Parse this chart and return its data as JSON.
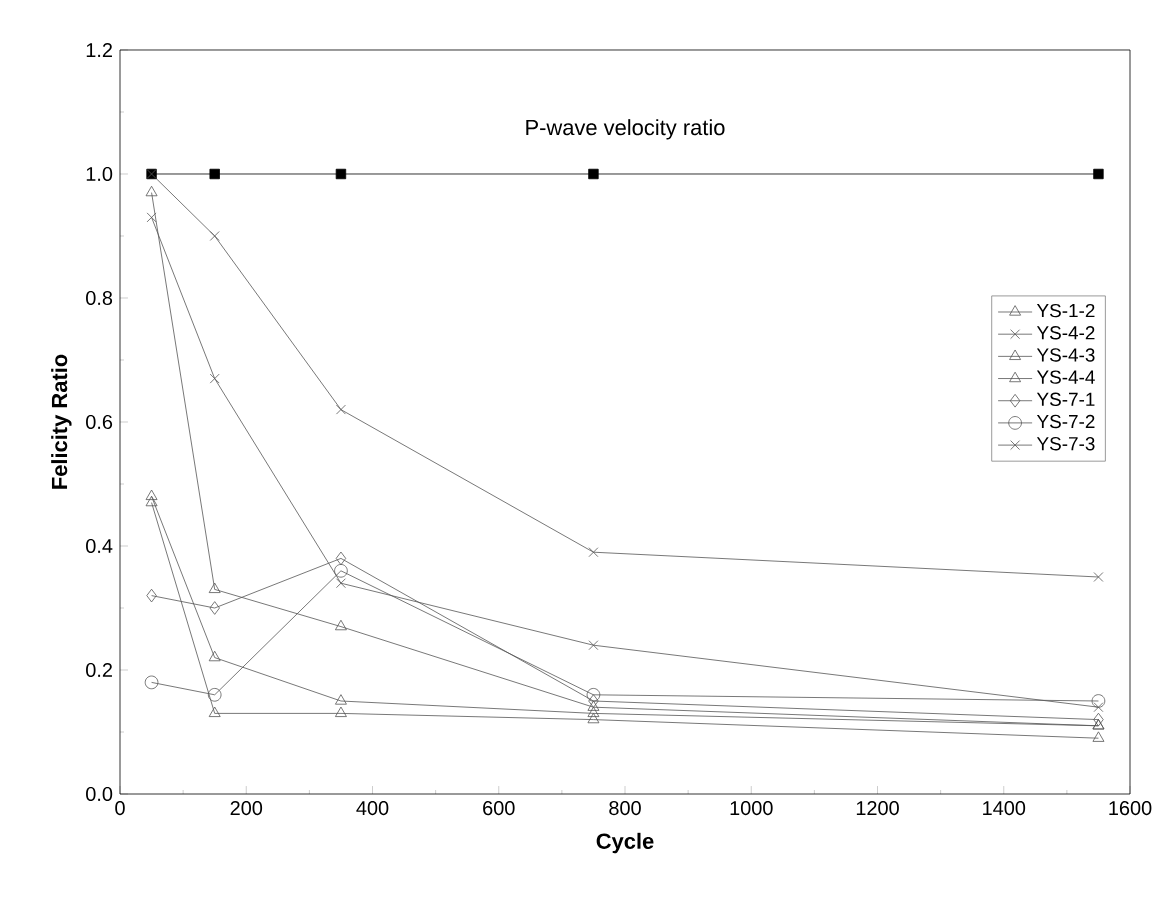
{
  "chart_data": {
    "type": "line",
    "xlabel": "Cycle",
    "ylabel": "Felicity Ratio",
    "xlim": [
      0,
      1600
    ],
    "ylim": [
      0,
      1.2
    ],
    "xticks": [
      0,
      200,
      400,
      600,
      800,
      1000,
      1200,
      1400,
      1600
    ],
    "yticks": [
      {
        "value": 0,
        "label": "0.0"
      },
      {
        "value": 0.2,
        "label": "0.2"
      },
      {
        "value": 0.4,
        "label": "0.4"
      },
      {
        "value": 0.6,
        "label": "0.6"
      },
      {
        "value": 0.8,
        "label": "0.8"
      },
      {
        "value": 1.0,
        "label": "1.0"
      },
      {
        "value": 1.2,
        "label": "1.2"
      }
    ],
    "x": [
      50,
      150,
      350,
      750,
      1550
    ],
    "grid": false,
    "legend": "right",
    "series": [
      {
        "name": "P-wave velocity ratio",
        "color": "#000000",
        "marker": "square",
        "values": [
          1.0,
          1.0,
          1.0,
          1.0,
          1.0
        ]
      },
      {
        "name": "YS-1-2",
        "color": "#555555",
        "marker": "triangle",
        "values": [
          0.47,
          0.13,
          0.13,
          0.12,
          0.09
        ]
      },
      {
        "name": "YS-4-2",
        "color": "#555555",
        "marker": "cross",
        "values": [
          1.0,
          0.9,
          0.62,
          0.39,
          0.35
        ]
      },
      {
        "name": "YS-4-3",
        "color": "#555555",
        "marker": "triangle-down",
        "values": [
          0.48,
          0.22,
          0.15,
          0.13,
          0.11
        ]
      },
      {
        "name": "YS-4-4",
        "color": "#555555",
        "marker": "triangle-left",
        "values": [
          0.97,
          0.33,
          0.27,
          0.14,
          0.11
        ]
      },
      {
        "name": "YS-7-1",
        "color": "#555555",
        "marker": "diamond",
        "values": [
          0.32,
          0.3,
          0.38,
          0.15,
          0.12
        ]
      },
      {
        "name": "YS-7-2",
        "color": "#555555",
        "marker": "circle",
        "values": [
          0.18,
          0.16,
          0.36,
          0.16,
          0.15
        ]
      },
      {
        "name": "YS-7-3",
        "color": "#555555",
        "marker": "cross",
        "values": [
          0.93,
          0.67,
          0.34,
          0.24,
          0.14
        ]
      }
    ]
  }
}
